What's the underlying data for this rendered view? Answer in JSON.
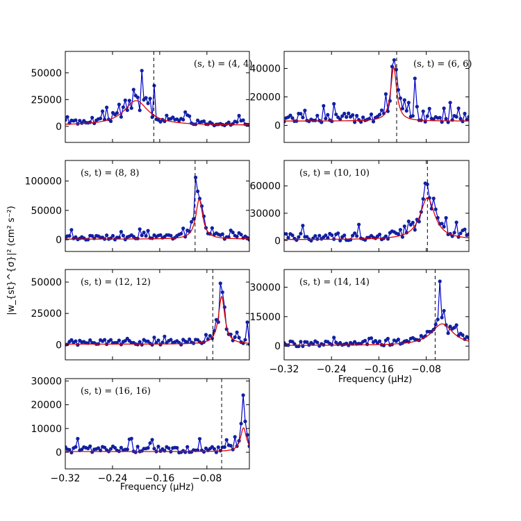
{
  "figure": {
    "ylabel": "|w_{st}^{σ}|² (cm² s⁻²)",
    "xlabel": "Frequency (μHz)",
    "colors": {
      "data": "#0000cc",
      "fit": "#dd0000",
      "marker": "#1020a0",
      "dashed": "#000000"
    }
  },
  "chart_data": [
    {
      "type": "line",
      "label": "(s, t) = (4, 4)",
      "xlim": [
        -0.32,
        -0.008
      ],
      "ylim": [
        -15000,
        70000
      ],
      "yticks": [
        0,
        25000,
        50000
      ],
      "xticks": [],
      "dashed_x": -0.17,
      "peak_x": -0.2,
      "peak_width": 0.05,
      "peak_height": 23000,
      "baseline": 1000,
      "noise": 2500,
      "spikes": [
        [
          -0.19,
          52000
        ],
        [
          -0.178,
          26000
        ],
        [
          -0.17,
          38000
        ],
        [
          -0.195,
          15000
        ]
      ],
      "seed": 3
    },
    {
      "type": "line",
      "label": "(s, t) = (6, 6)",
      "xlim": [
        -0.32,
        -0.008
      ],
      "ylim": [
        -12000,
        52000
      ],
      "yticks": [
        0,
        20000,
        40000
      ],
      "xticks": [],
      "dashed_x": -0.13,
      "peak_x": -0.135,
      "peak_width": 0.012,
      "peak_height": 38000,
      "baseline": 3000,
      "noise": 3000,
      "spikes": [
        [
          -0.133,
          46000
        ],
        [
          -0.1,
          33000
        ],
        [
          -0.147,
          22000
        ],
        [
          -0.11,
          16000
        ],
        [
          -0.04,
          16000
        ],
        [
          -0.05,
          12000
        ]
      ],
      "seed": 7
    },
    {
      "type": "line",
      "label": "(s, t) = (8, 8)",
      "xlim": [
        -0.32,
        -0.008
      ],
      "ylim": [
        -20000,
        135000
      ],
      "yticks": [
        0,
        50000,
        100000
      ],
      "xticks": [],
      "dashed_x": -0.1,
      "peak_x": -0.093,
      "peak_width": 0.014,
      "peak_height": 68000,
      "baseline": 1000,
      "noise": 4000,
      "spikes": [
        [
          -0.1,
          106000
        ],
        [
          -0.093,
          70000
        ],
        [
          -0.085,
          40000
        ],
        [
          -0.07,
          20000
        ]
      ],
      "seed": 11
    },
    {
      "type": "line",
      "label": "(s, t) = (10, 10)",
      "xlim": [
        -0.32,
        -0.008
      ],
      "ylim": [
        -12000,
        88000
      ],
      "yticks": [
        0,
        30000,
        60000
      ],
      "xticks": [],
      "dashed_x": -0.078,
      "peak_x": -0.078,
      "peak_width": 0.03,
      "peak_height": 46000,
      "baseline": 1000,
      "noise": 4000,
      "spikes": [
        [
          -0.083,
          66000
        ],
        [
          -0.08,
          63000
        ],
        [
          -0.07,
          35000
        ],
        [
          -0.06,
          25000
        ],
        [
          -0.03,
          20000
        ]
      ],
      "seed": 13
    },
    {
      "type": "line",
      "label": "(s, t) = (12, 12)",
      "xlim": [
        -0.32,
        -0.008
      ],
      "ylim": [
        -12000,
        60000
      ],
      "yticks": [
        0,
        25000,
        50000
      ],
      "xticks": [],
      "dashed_x": -0.07,
      "peak_x": -0.055,
      "peak_width": 0.013,
      "peak_height": 38000,
      "baseline": 500,
      "noise": 2000,
      "spikes": [
        [
          -0.057,
          49000
        ],
        [
          -0.05,
          30000
        ],
        [
          -0.012,
          18000
        ],
        [
          -0.03,
          10000
        ]
      ],
      "seed": 17
    },
    {
      "type": "line",
      "label": "(s, t) = (14, 14)",
      "xlim": [
        -0.32,
        -0.008
      ],
      "ylim": [
        -7000,
        39000
      ],
      "yticks": [
        0,
        15000,
        30000
      ],
      "xticks": [
        -0.32,
        -0.24,
        -0.16,
        -0.08
      ],
      "xtick_labels": [
        "−0.32",
        "−0.24",
        "−0.16",
        "−0.08"
      ],
      "dashed_x": -0.065,
      "peak_x": -0.053,
      "peak_width": 0.045,
      "peak_height": 11000,
      "baseline": 300,
      "noise": 1200,
      "spikes": [
        [
          -0.057,
          33000
        ],
        [
          -0.05,
          18000
        ],
        [
          -0.04,
          10000
        ]
      ],
      "seed": 19
    },
    {
      "type": "line",
      "label": "(s, t) = (16, 16)",
      "xlim": [
        -0.32,
        -0.008
      ],
      "ylim": [
        -7000,
        31000
      ],
      "yticks": [
        0,
        10000,
        20000,
        30000
      ],
      "xticks": [
        -0.32,
        -0.24,
        -0.16,
        -0.08
      ],
      "xtick_labels": [
        "−0.32",
        "−0.24",
        "−0.16",
        "−0.08"
      ],
      "dashed_x": -0.055,
      "peak_x": -0.018,
      "peak_width": 0.012,
      "peak_height": 10000,
      "baseline": 300,
      "noise": 1300,
      "spikes": [
        [
          -0.018,
          24000
        ],
        [
          -0.015,
          13000
        ]
      ],
      "seed": 23
    }
  ]
}
